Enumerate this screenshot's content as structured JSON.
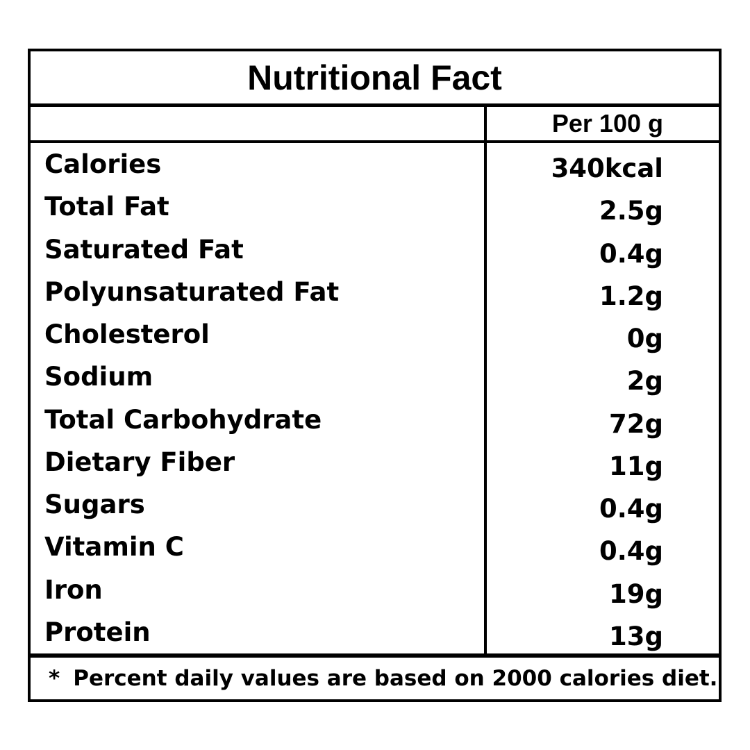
{
  "table": {
    "title": "Nutritional Fact",
    "column_header": "Per 100 g",
    "rows": [
      {
        "label": "Calories",
        "value": "340kcal"
      },
      {
        "label": "Total Fat",
        "value": "2.5g"
      },
      {
        "label": "Saturated Fat",
        "value": "0.4g"
      },
      {
        "label": "Polyunsaturated Fat",
        "value": "1.2g"
      },
      {
        "label": "Cholesterol",
        "value": "0g"
      },
      {
        "label": "Sodium",
        "value": "2g"
      },
      {
        "label": "Total Carbohydrate",
        "value": "72g"
      },
      {
        "label": "Dietary Fiber",
        "value": "11g"
      },
      {
        "label": "Sugars",
        "value": "0.4g"
      },
      {
        "label": "Vitamin C",
        "value": "0.4g"
      },
      {
        "label": "Iron",
        "value": "19g"
      },
      {
        "label": "Protein",
        "value": "13g"
      }
    ],
    "footnote_marker": "*",
    "footnote_text": "Percent daily values are based on 2000 calories diet."
  },
  "colors": {
    "text": "#000000",
    "border": "#000000",
    "background": "#ffffff"
  }
}
